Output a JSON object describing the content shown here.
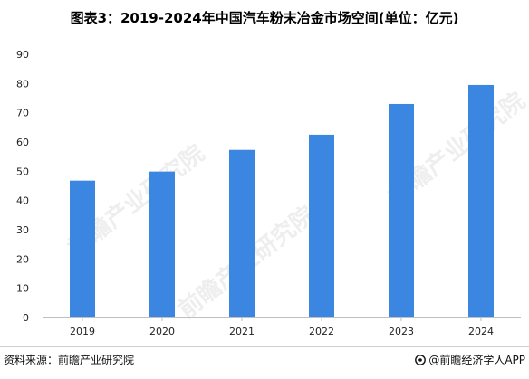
{
  "chart_data": {
    "type": "bar",
    "title": "图表3：2019-2024年中国汽车粉末冶金市场空间(单位：亿元)",
    "categories": [
      "2019",
      "2020",
      "2021",
      "2022",
      "2023",
      "2024"
    ],
    "values": [
      46.8,
      49.9,
      57.3,
      62.5,
      73.0,
      79.5
    ],
    "ylim": [
      0,
      90
    ],
    "yticks": [
      0,
      10,
      20,
      30,
      40,
      50,
      60,
      70,
      80,
      90
    ],
    "xlabel": "",
    "ylabel": "",
    "grid": false,
    "bar_color": "#3a86e0"
  },
  "footer": {
    "source": "资料来源：前瞻产业研究院",
    "brand": "@前瞻经济学人APP"
  },
  "watermark": {
    "text": "前瞻产业研究院"
  }
}
